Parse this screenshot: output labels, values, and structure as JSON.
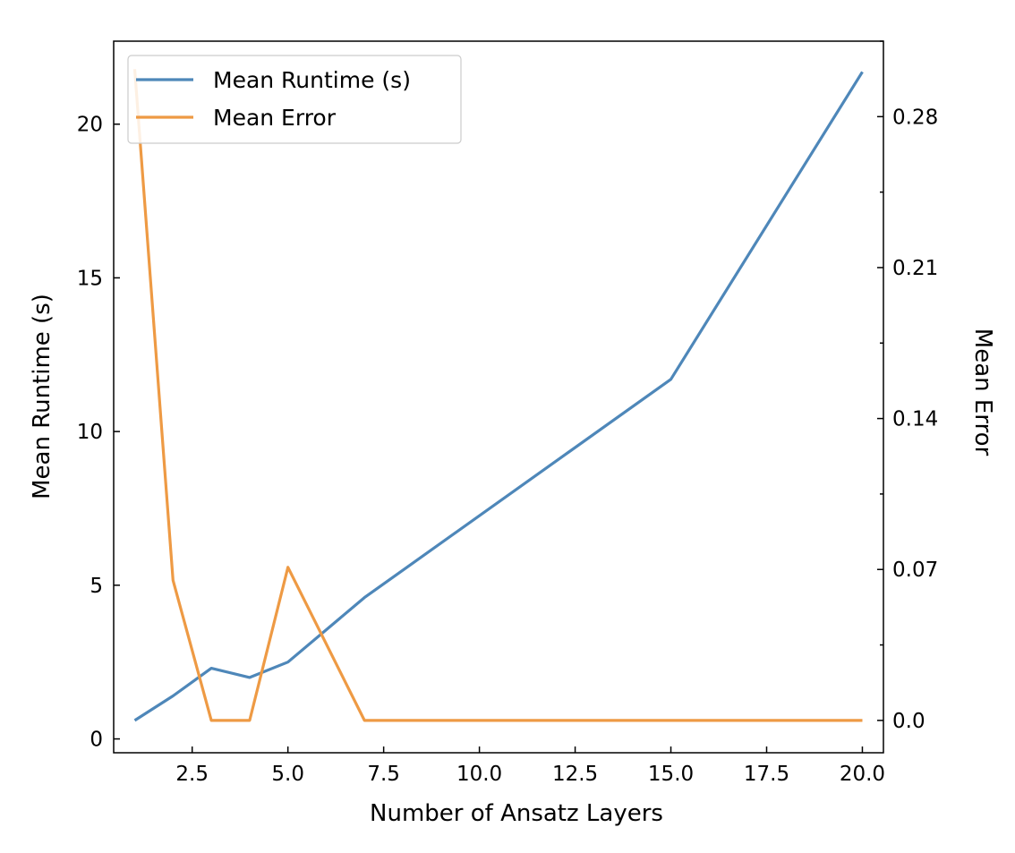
{
  "chart_data": {
    "type": "line",
    "xlabel": "Number of Ansatz Layers",
    "ylabel_left": "Mean Runtime (s)",
    "ylabel_right": "Mean Error",
    "x_ticks": [
      "2.5",
      "5.0",
      "7.5",
      "10.0",
      "12.5",
      "15.0",
      "17.5",
      "20.0"
    ],
    "y_left_ticks": [
      "0",
      "5",
      "10",
      "15",
      "20"
    ],
    "y_right_ticks": [
      "0.0",
      "0.07",
      "0.14",
      "0.21",
      "0.28"
    ],
    "xlim": [
      0.45,
      20.55
    ],
    "ylim_left": [
      -0.45,
      22.7
    ],
    "ylim_right": [
      -0.015,
      0.315
    ],
    "legend_position": "top-left",
    "grid": false,
    "series": [
      {
        "name": "Mean Runtime (s)",
        "axis": "left",
        "color": "#4e87b9",
        "x": [
          1,
          2,
          3,
          4,
          5,
          7,
          15,
          20
        ],
        "values": [
          0.6,
          1.4,
          2.3,
          2.0,
          2.5,
          4.6,
          11.7,
          21.7
        ]
      },
      {
        "name": "Mean Error",
        "axis": "right",
        "color": "#ee9a44",
        "x": [
          1,
          2,
          3,
          4,
          5,
          7,
          15,
          20
        ],
        "values": [
          0.302,
          0.065,
          0.0,
          0.0,
          0.071,
          0.0,
          0.0,
          0.0
        ]
      }
    ]
  }
}
